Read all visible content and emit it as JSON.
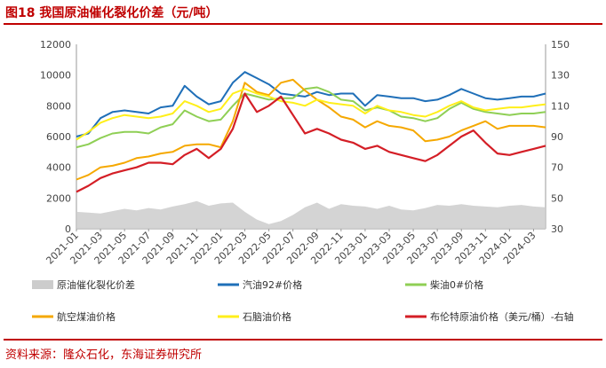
{
  "header": {
    "title": "图18  我国原油催化裂化价差（元/吨）"
  },
  "footer": {
    "source": "资料来源：隆众石化，东海证券研究所"
  },
  "chart_data": {
    "type": "line",
    "title": "我国原油催化裂化价差（元/吨）",
    "x_ticks": [
      "2021-01",
      "2021-03",
      "2021-05",
      "2021-07",
      "2021-09",
      "2021-11",
      "2022-01",
      "2022-03",
      "2022-05",
      "2022-07",
      "2022-09",
      "2022-11",
      "2023-01",
      "2023-03",
      "2023-05",
      "2023-07",
      "2023-09",
      "2023-11",
      "2024-01",
      "2024-03"
    ],
    "x_months": [
      0,
      2,
      4,
      6,
      8,
      10,
      12,
      14,
      16,
      18,
      20,
      22,
      24,
      26,
      28,
      30,
      32,
      34,
      36,
      38
    ],
    "x_range_months": [
      0,
      39
    ],
    "left_axis": {
      "ticks": [
        0,
        2000,
        4000,
        6000,
        8000,
        10000,
        12000
      ],
      "lim": [
        0,
        12000
      ]
    },
    "right_axis": {
      "ticks": [
        30,
        50,
        70,
        90,
        110,
        130,
        150
      ],
      "lim": [
        30,
        150
      ]
    },
    "series": [
      {
        "name": "原油催化裂化价差",
        "kind": "area",
        "axis": "left",
        "color": "#cccccc",
        "x": [
          0,
          1,
          2,
          3,
          4,
          5,
          6,
          7,
          8,
          9,
          10,
          11,
          12,
          13,
          14,
          15,
          16,
          17,
          18,
          19,
          20,
          21,
          22,
          23,
          24,
          25,
          26,
          27,
          28,
          29,
          30,
          31,
          32,
          33,
          34,
          35,
          36,
          37,
          38,
          39
        ],
        "values": [
          1100,
          1050,
          1000,
          1150,
          1300,
          1200,
          1350,
          1250,
          1450,
          1600,
          1800,
          1500,
          1650,
          1700,
          1100,
          600,
          300,
          500,
          900,
          1400,
          1700,
          1300,
          1600,
          1500,
          1450,
          1300,
          1500,
          1250,
          1200,
          1350,
          1550,
          1500,
          1600,
          1500,
          1450,
          1400,
          1500,
          1550,
          1450,
          1400
        ]
      },
      {
        "name": "汽油92#价格",
        "kind": "line",
        "axis": "left",
        "color": "#1f6fb8",
        "x": [
          0,
          1,
          2,
          3,
          4,
          5,
          6,
          7,
          8,
          9,
          10,
          11,
          12,
          13,
          14,
          15,
          16,
          17,
          18,
          19,
          20,
          21,
          22,
          23,
          24,
          25,
          26,
          27,
          28,
          29,
          30,
          31,
          32,
          33,
          34,
          35,
          36,
          37,
          38,
          39
        ],
        "values": [
          6000,
          6200,
          7200,
          7600,
          7700,
          7600,
          7500,
          7900,
          8000,
          9300,
          8600,
          8100,
          8300,
          9500,
          10200,
          9800,
          9400,
          8800,
          8700,
          8600,
          8900,
          8700,
          8800,
          8800,
          8000,
          8700,
          8600,
          8500,
          8500,
          8300,
          8400,
          8700,
          9100,
          8800,
          8500,
          8400,
          8500,
          8600,
          8600,
          8800
        ]
      },
      {
        "name": "柴油0#价格",
        "kind": "line",
        "axis": "left",
        "color": "#8fcf55",
        "x": [
          0,
          1,
          2,
          3,
          4,
          5,
          6,
          7,
          8,
          9,
          10,
          11,
          12,
          13,
          14,
          15,
          16,
          17,
          18,
          19,
          20,
          21,
          22,
          23,
          24,
          25,
          26,
          27,
          28,
          29,
          30,
          31,
          32,
          33,
          34,
          35,
          36,
          37,
          38,
          39
        ],
        "values": [
          5300,
          5500,
          5900,
          6200,
          6300,
          6300,
          6200,
          6600,
          6800,
          7700,
          7300,
          7000,
          7100,
          8000,
          8800,
          8600,
          8400,
          8500,
          8500,
          9100,
          9200,
          8900,
          8400,
          8300,
          7700,
          7900,
          7700,
          7300,
          7200,
          7000,
          7200,
          7800,
          8200,
          7800,
          7600,
          7500,
          7400,
          7500,
          7500,
          7600
        ]
      },
      {
        "name": "航空煤油价格",
        "kind": "line",
        "axis": "left",
        "color": "#f5a800",
        "x": [
          0,
          1,
          2,
          3,
          4,
          5,
          6,
          7,
          8,
          9,
          10,
          11,
          12,
          13,
          14,
          15,
          16,
          17,
          18,
          19,
          20,
          21,
          22,
          23,
          24,
          25,
          26,
          27,
          28,
          29,
          30,
          31,
          32,
          33,
          34,
          35,
          36,
          37,
          38,
          39
        ],
        "values": [
          3200,
          3500,
          4000,
          4100,
          4300,
          4600,
          4700,
          4900,
          5000,
          5400,
          5500,
          5500,
          5300,
          7000,
          9500,
          8900,
          8700,
          9500,
          9700,
          9000,
          8400,
          7900,
          7300,
          7100,
          6600,
          7000,
          6700,
          6600,
          6400,
          5700,
          5800,
          6000,
          6400,
          6700,
          7000,
          6500,
          6700,
          6700,
          6700,
          6600
        ]
      },
      {
        "name": "石脑油价格",
        "kind": "line",
        "axis": "left",
        "color": "#ffef1a",
        "x": [
          0,
          1,
          2,
          3,
          4,
          5,
          6,
          7,
          8,
          9,
          10,
          11,
          12,
          13,
          14,
          15,
          16,
          17,
          18,
          19,
          20,
          21,
          22,
          23,
          24,
          25,
          26,
          27,
          28,
          29,
          30,
          31,
          32,
          33,
          34,
          35,
          36,
          37,
          38,
          39
        ],
        "values": [
          5800,
          6300,
          6900,
          7200,
          7400,
          7300,
          7200,
          7300,
          7500,
          8300,
          8000,
          7600,
          7800,
          8800,
          9100,
          8800,
          8600,
          8300,
          8200,
          8000,
          8400,
          8200,
          8100,
          8000,
          7500,
          8000,
          7700,
          7600,
          7400,
          7300,
          7600,
          8000,
          8300,
          7900,
          7700,
          7800,
          7900,
          7900,
          8000,
          8100
        ]
      },
      {
        "name": "布伦特原油价格（美元/桶）-右轴",
        "kind": "line",
        "axis": "right",
        "color": "#d41e26",
        "x": [
          0,
          1,
          2,
          3,
          4,
          5,
          6,
          7,
          8,
          9,
          10,
          11,
          12,
          13,
          14,
          15,
          16,
          17,
          18,
          19,
          20,
          21,
          22,
          23,
          24,
          25,
          26,
          27,
          28,
          29,
          30,
          31,
          32,
          33,
          34,
          35,
          36,
          37,
          38,
          39
        ],
        "values": [
          54,
          58,
          63,
          66,
          68,
          70,
          73,
          73,
          72,
          78,
          82,
          76,
          82,
          95,
          118,
          106,
          110,
          116,
          104,
          92,
          95,
          92,
          88,
          86,
          82,
          84,
          80,
          78,
          76,
          74,
          78,
          84,
          90,
          94,
          86,
          79,
          78,
          80,
          82,
          84
        ]
      }
    ]
  }
}
